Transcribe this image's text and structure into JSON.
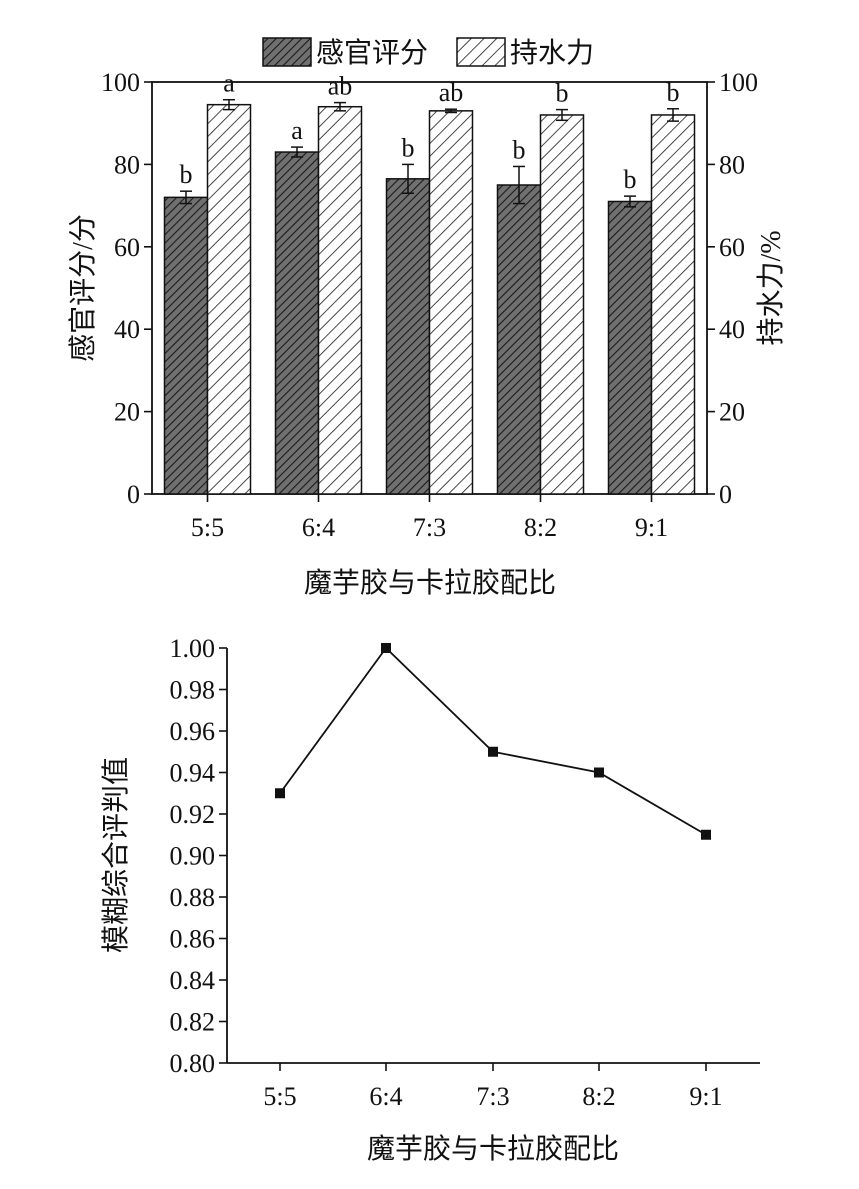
{
  "chart_data": [
    {
      "type": "bar",
      "categories": [
        "5:5",
        "6:4",
        "7:3",
        "8:2",
        "9:1"
      ],
      "series": [
        {
          "name": "感官评分",
          "values": [
            72,
            83,
            76.5,
            75,
            71
          ],
          "errors": [
            1.5,
            1.2,
            3.5,
            4.5,
            1.3
          ],
          "labels": [
            "b",
            "a",
            "b",
            "b",
            "b"
          ],
          "axis": "left",
          "pattern": "dense-hatch",
          "fill": "#5a5a5a"
        },
        {
          "name": "持水力",
          "values": [
            94.5,
            94,
            93,
            92,
            92
          ],
          "errors": [
            1.2,
            1.0,
            0.4,
            1.3,
            1.5
          ],
          "labels": [
            "a",
            "ab",
            "ab",
            "b",
            "b"
          ],
          "axis": "right",
          "pattern": "light-hatch",
          "fill": "#ffffff"
        }
      ],
      "xlabel": "魔芋胶与卡拉胶配比",
      "ylabel": "感官评分/分",
      "y2label": "持水力/%",
      "ylim": [
        0,
        100
      ],
      "y2lim": [
        0,
        100
      ],
      "yticks": [
        "0",
        "20",
        "40",
        "60",
        "80",
        "100"
      ],
      "y2ticks": [
        "0",
        "20",
        "40",
        "60",
        "80",
        "100"
      ],
      "legend_position": "top"
    },
    {
      "type": "line",
      "x": [
        "5:5",
        "6:4",
        "7:3",
        "8:2",
        "9:1"
      ],
      "series": [
        {
          "values": [
            0.93,
            1.0,
            0.95,
            0.94,
            0.91
          ]
        }
      ],
      "xlabel": "魔芋胶与卡拉胶配比",
      "ylabel": "模糊综合评判值",
      "ylim": [
        0.8,
        1.0
      ],
      "yticks": [
        "0.80",
        "0.82",
        "0.84",
        "0.86",
        "0.88",
        "0.90",
        "0.92",
        "0.94",
        "0.96",
        "0.98",
        "1.00"
      ],
      "marker": "square"
    }
  ]
}
